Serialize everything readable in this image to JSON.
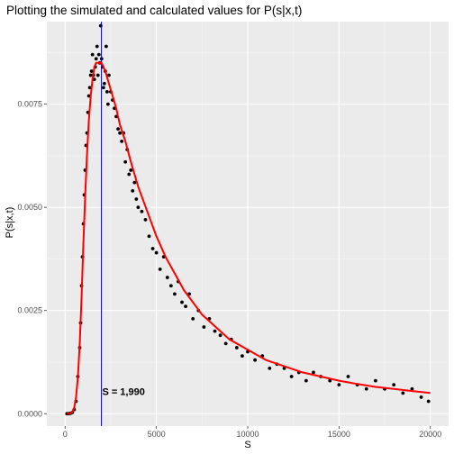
{
  "chart_data": {
    "type": "scatter",
    "title": "Plotting the simulated and calculated values for P(s|x,t)",
    "xlabel": "S",
    "ylabel": "P(s|x,t)",
    "xlim": [
      -1000,
      21000
    ],
    "ylim": [
      -0.0003,
      0.0095
    ],
    "x_ticks": [
      0,
      5000,
      10000,
      15000,
      20000
    ],
    "x_tick_labels": [
      "0",
      "5000",
      "10000",
      "15000",
      "20000"
    ],
    "y_ticks": [
      0,
      0.0025,
      0.005,
      0.0075
    ],
    "y_tick_labels": [
      "0.0000",
      "0.0025",
      "0.0050",
      "0.0075"
    ],
    "grid": true,
    "legend": "none",
    "series": [
      {
        "kind": "points",
        "color": "#000000",
        "x": [
          100,
          200,
          300,
          400,
          500,
          600,
          700,
          800,
          850,
          900,
          950,
          1000,
          1050,
          1100,
          1150,
          1200,
          1250,
          1300,
          1350,
          1400,
          1450,
          1500,
          1550,
          1600,
          1650,
          1700,
          1750,
          1800,
          1850,
          1900,
          1950,
          2000,
          2050,
          2100,
          2150,
          2200,
          2250,
          2300,
          2350,
          2400,
          2500,
          2600,
          2700,
          2800,
          2900,
          3000,
          3100,
          3200,
          3300,
          3400,
          3500,
          3600,
          3700,
          3800,
          3900,
          4000,
          4200,
          4400,
          4600,
          4800,
          5000,
          5200,
          5400,
          5600,
          5800,
          6000,
          6200,
          6400,
          6600,
          6800,
          7000,
          7300,
          7600,
          7900,
          8200,
          8500,
          8800,
          9100,
          9400,
          9700,
          10000,
          10400,
          10800,
          11200,
          11600,
          12000,
          12400,
          12800,
          13200,
          13600,
          14000,
          14500,
          15000,
          15500,
          16000,
          16500,
          17000,
          17500,
          18000,
          18500,
          19000,
          19500,
          19900
        ],
        "y": [
          0.0,
          0.0,
          1e-05,
          3e-05,
          0.0001,
          0.0003,
          0.0009,
          0.0016,
          0.0022,
          0.0031,
          0.0038,
          0.0046,
          0.0053,
          0.0059,
          0.0065,
          0.0068,
          0.0073,
          0.0077,
          0.0079,
          0.0082,
          0.0083,
          0.0087,
          0.0082,
          0.0081,
          0.0084,
          0.0086,
          0.0089,
          0.0082,
          0.0087,
          0.0085,
          0.0094,
          0.0086,
          0.0084,
          0.0079,
          0.008,
          0.0083,
          0.0089,
          0.0078,
          0.0075,
          0.0082,
          0.0078,
          0.0076,
          0.0074,
          0.0072,
          0.0069,
          0.0068,
          0.0066,
          0.0068,
          0.0061,
          0.0064,
          0.0058,
          0.0059,
          0.0054,
          0.0056,
          0.0052,
          0.005,
          0.0049,
          0.0047,
          0.0043,
          0.004,
          0.0039,
          0.0035,
          0.0038,
          0.0033,
          0.0031,
          0.0029,
          0.0032,
          0.0027,
          0.0026,
          0.0029,
          0.0023,
          0.0025,
          0.0021,
          0.0023,
          0.002,
          0.0019,
          0.0017,
          0.0018,
          0.0016,
          0.0014,
          0.0015,
          0.0013,
          0.0014,
          0.0011,
          0.0012,
          0.0011,
          0.0009,
          0.001,
          0.0008,
          0.001,
          0.0009,
          0.0008,
          0.0007,
          0.0009,
          0.0007,
          0.0006,
          0.0008,
          0.0006,
          0.0007,
          0.0005,
          0.0006,
          0.0004,
          0.0003
        ]
      },
      {
        "kind": "line",
        "color": "#ff0000",
        "x": [
          100,
          200,
          300,
          400,
          500,
          600,
          700,
          800,
          900,
          1000,
          1100,
          1200,
          1300,
          1400,
          1500,
          1600,
          1700,
          1800,
          1900,
          2000,
          2200,
          2400,
          2600,
          2800,
          3000,
          3300,
          3600,
          4000,
          4500,
          5000,
          5500,
          6000,
          6500,
          7000,
          7500,
          8000,
          9000,
          10000,
          11000,
          12000,
          13000,
          14000,
          15000,
          16000,
          17000,
          18000,
          19000,
          20000
        ],
        "y": [
          0.0,
          0.0,
          1e-05,
          5e-05,
          0.00015,
          0.0004,
          0.0009,
          0.0017,
          0.0028,
          0.0041,
          0.0053,
          0.0063,
          0.0071,
          0.0077,
          0.0081,
          0.0084,
          0.0085,
          0.0085,
          0.0085,
          0.0085,
          0.0083,
          0.008,
          0.0077,
          0.0074,
          0.007,
          0.0066,
          0.0061,
          0.0055,
          0.0049,
          0.0043,
          0.0038,
          0.0034,
          0.003,
          0.0027,
          0.0024,
          0.0022,
          0.0018,
          0.00155,
          0.0013,
          0.00115,
          0.001,
          0.0009,
          0.0008,
          0.00072,
          0.00065,
          0.0006,
          0.00055,
          0.0005
        ]
      }
    ],
    "vline": {
      "x": 1990,
      "color": "#00008b"
    },
    "annotation": {
      "text": "S = 1,990",
      "x": 3200,
      "y": 0.00045
    }
  }
}
